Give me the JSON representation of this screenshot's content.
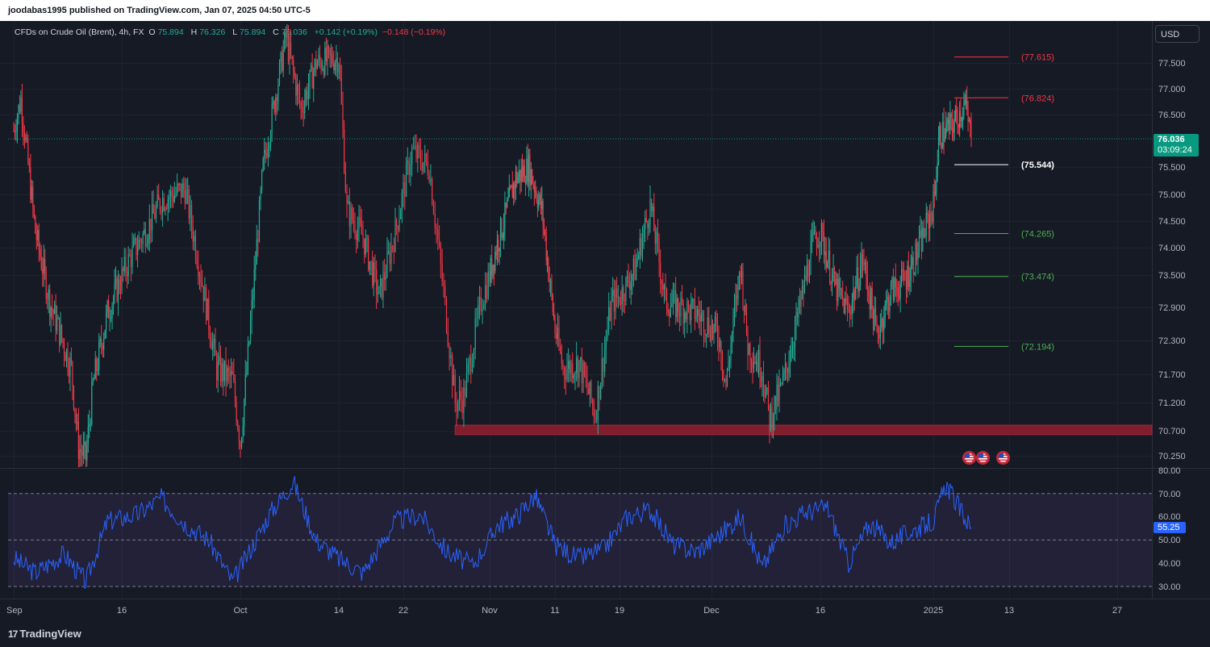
{
  "header": {
    "publisher": "joodabas1995 published on TradingView.com, Jan 07, 2025 04:50 UTC-5"
  },
  "legend": {
    "symbol": "CFDs on Crude Oil (Brent), 4h, FX",
    "open_label": "O",
    "open": "75.894",
    "high_label": "H",
    "high": "76.326",
    "low_label": "L",
    "low": "75.894",
    "close_label": "C",
    "close": "76.036",
    "change": "+0.142 (+0.19%)",
    "change2": "−0.148 (−0.19%)"
  },
  "currency_button": "USD",
  "current_price": {
    "value": "76.036",
    "countdown": "03:09:24"
  },
  "rsi_value": "55.25",
  "branding": {
    "logo_mark": "17",
    "name": "TradingView"
  },
  "colors": {
    "up": "#22ab94",
    "down": "#f23645",
    "rsi_line": "#2962ff",
    "support_zone": "#801e2d",
    "background": "#161a25"
  },
  "chart_data": [
    {
      "type": "candlestick",
      "title": "CFDs on Crude Oil (Brent), 4h, FX",
      "y_ticks": [
        "77.500",
        "77.000",
        "76.500",
        "76.036",
        "75.500",
        "75.000",
        "74.500",
        "74.000",
        "73.500",
        "72.900",
        "72.300",
        "71.700",
        "71.200",
        "70.700",
        "70.250"
      ],
      "x_ticks": [
        "Sep",
        "16",
        "Oct",
        "14",
        "22",
        "Nov",
        "11",
        "19",
        "Dec",
        "16",
        "2025",
        "13",
        "27"
      ],
      "ylim": [
        70.0,
        78.5
      ],
      "price_path": [
        {
          "x": "Sep 1",
          "y": 76.2
        },
        {
          "x": "Sep 2",
          "y": 76.8
        },
        {
          "x": "Sep 4",
          "y": 74.3
        },
        {
          "x": "Sep 6",
          "y": 73.0
        },
        {
          "x": "Sep 9",
          "y": 71.8
        },
        {
          "x": "Sep 10",
          "y": 70.4
        },
        {
          "x": "Sep 11",
          "y": 70.2
        },
        {
          "x": "Sep 12",
          "y": 71.5
        },
        {
          "x": "Sep 14",
          "y": 72.8
        },
        {
          "x": "Sep 17",
          "y": 73.8
        },
        {
          "x": "Sep 19",
          "y": 74.3
        },
        {
          "x": "Sep 21",
          "y": 74.9
        },
        {
          "x": "Sep 24",
          "y": 75.1
        },
        {
          "x": "Sep 26",
          "y": 73.5
        },
        {
          "x": "Sep 28",
          "y": 71.8
        },
        {
          "x": "Sep 30",
          "y": 71.6
        },
        {
          "x": "Oct 1",
          "y": 70.5
        },
        {
          "x": "Oct 2",
          "y": 72.0
        },
        {
          "x": "Oct 4",
          "y": 75.5
        },
        {
          "x": "Oct 7",
          "y": 78.0
        },
        {
          "x": "Oct 9",
          "y": 76.6
        },
        {
          "x": "Oct 11",
          "y": 77.5
        },
        {
          "x": "Oct 14",
          "y": 77.6
        },
        {
          "x": "Oct 15",
          "y": 74.7
        },
        {
          "x": "Oct 17",
          "y": 74.2
        },
        {
          "x": "Oct 19",
          "y": 73.1
        },
        {
          "x": "Oct 21",
          "y": 74.3
        },
        {
          "x": "Oct 23",
          "y": 75.8
        },
        {
          "x": "Oct 25",
          "y": 75.5
        },
        {
          "x": "Oct 27",
          "y": 72.7
        },
        {
          "x": "Oct 28",
          "y": 71.2
        },
        {
          "x": "Oct 29",
          "y": 71.3
        },
        {
          "x": "Oct 31",
          "y": 73.0
        },
        {
          "x": "Nov 2",
          "y": 74.0
        },
        {
          "x": "Nov 5",
          "y": 75.3
        },
        {
          "x": "Nov 7",
          "y": 75.5
        },
        {
          "x": "Nov 9",
          "y": 74.7
        },
        {
          "x": "Nov 11",
          "y": 72.5
        },
        {
          "x": "Nov 12",
          "y": 71.8
        },
        {
          "x": "Nov 14",
          "y": 71.9
        },
        {
          "x": "Nov 16",
          "y": 71.0
        },
        {
          "x": "Nov 18",
          "y": 73.0
        },
        {
          "x": "Nov 19",
          "y": 73.1
        },
        {
          "x": "Nov 21",
          "y": 73.6
        },
        {
          "x": "Nov 23",
          "y": 74.8
        },
        {
          "x": "Nov 25",
          "y": 73.0
        },
        {
          "x": "Nov 27",
          "y": 72.9
        },
        {
          "x": "Nov 29",
          "y": 72.8
        },
        {
          "x": "Dec 2",
          "y": 72.4
        },
        {
          "x": "Dec 3",
          "y": 71.5
        },
        {
          "x": "Dec 5",
          "y": 73.7
        },
        {
          "x": "Dec 6",
          "y": 72.2
        },
        {
          "x": "Dec 8",
          "y": 71.8
        },
        {
          "x": "Dec 9",
          "y": 70.9
        },
        {
          "x": "Dec 11",
          "y": 71.6
        },
        {
          "x": "Dec 13",
          "y": 72.8
        },
        {
          "x": "Dec 15",
          "y": 74.1
        },
        {
          "x": "Dec 16",
          "y": 74.3
        },
        {
          "x": "Dec 18",
          "y": 73.3
        },
        {
          "x": "Dec 20",
          "y": 72.8
        },
        {
          "x": "Dec 22",
          "y": 73.8
        },
        {
          "x": "Dec 24",
          "y": 72.4
        },
        {
          "x": "Dec 26",
          "y": 73.2
        },
        {
          "x": "Dec 28",
          "y": 73.4
        },
        {
          "x": "Dec 30",
          "y": 74.0
        },
        {
          "x": "Jan 1",
          "y": 74.8
        },
        {
          "x": "Jan 2",
          "y": 76.1
        },
        {
          "x": "Jan 4",
          "y": 76.3
        },
        {
          "x": "Jan 6",
          "y": 76.7
        },
        {
          "x": "Jan 7",
          "y": 76.036
        }
      ],
      "horizontal_lines": [
        {
          "label": "(77.615)",
          "value": 77.615,
          "color": "#f23645"
        },
        {
          "label": "(76.824)",
          "value": 76.824,
          "color": "#f23645"
        },
        {
          "label": "(75.544)",
          "value": 75.544,
          "color": "#ffffff"
        },
        {
          "label": "(74.265)",
          "value": 74.265,
          "color": "#4caf50"
        },
        {
          "label": "(73.474)",
          "value": 73.474,
          "color": "#4caf50"
        },
        {
          "label": "(72.194)",
          "value": 72.194,
          "color": "#4caf50"
        }
      ],
      "support_zone": {
        "from": 70.63,
        "to": 70.8,
        "start": "Oct 28"
      },
      "last_price_line": 76.036
    },
    {
      "type": "line",
      "name": "RSI",
      "y_ticks": [
        "80.00",
        "70.00",
        "60.00",
        "50.00",
        "40.00",
        "30.00"
      ],
      "ylim": [
        30,
        80
      ],
      "bands": [
        70,
        50,
        30
      ],
      "x": [
        "Sep 1",
        "Sep 4",
        "Sep 8",
        "Sep 11",
        "Sep 14",
        "Sep 18",
        "Sep 21",
        "Sep 24",
        "Sep 27",
        "Sep 30",
        "Oct 2",
        "Oct 5",
        "Oct 8",
        "Oct 11",
        "Oct 14",
        "Oct 17",
        "Oct 21",
        "Oct 24",
        "Oct 27",
        "Oct 30",
        "Nov 2",
        "Nov 5",
        "Nov 8",
        "Nov 11",
        "Nov 14",
        "Nov 17",
        "Nov 20",
        "Nov 23",
        "Nov 26",
        "Nov 29",
        "Dec 2",
        "Dec 5",
        "Dec 8",
        "Dec 11",
        "Dec 14",
        "Dec 17",
        "Dec 20",
        "Dec 23",
        "Dec 26",
        "Dec 29",
        "Jan 1",
        "Jan 3",
        "Jan 5",
        "Jan 7"
      ],
      "values": [
        42,
        36,
        44,
        32,
        58,
        61,
        68,
        57,
        50,
        32,
        44,
        62,
        75,
        50,
        42,
        36,
        58,
        61,
        45,
        39,
        56,
        60,
        69,
        48,
        42,
        46,
        60,
        63,
        48,
        45,
        52,
        60,
        38,
        56,
        62,
        64,
        40,
        57,
        49,
        54,
        58,
        74,
        64,
        55.25
      ]
    }
  ]
}
